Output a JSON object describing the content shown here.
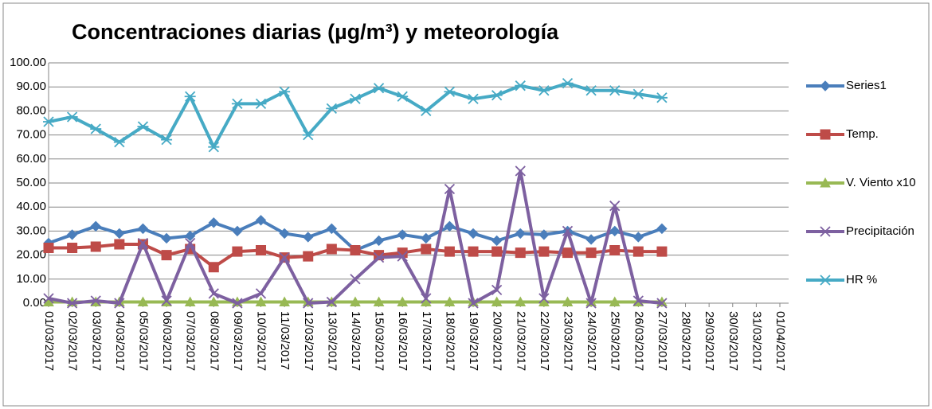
{
  "chart_data": {
    "type": "line",
    "title": "Concentraciones diarias (µg/m³) y meteorología",
    "categories": [
      "01/03/2017",
      "02/03/2017",
      "03/03/2017",
      "04/03/2017",
      "05/03/2017",
      "06/03/2017",
      "07/03/2017",
      "08/03/2017",
      "09/03/2017",
      "10/03/2017",
      "11/03/2017",
      "12/03/2017",
      "13/03/2017",
      "14/03/2017",
      "15/03/2017",
      "16/03/2017",
      "17/03/2017",
      "18/03/2017",
      "19/03/2017",
      "20/03/2017",
      "21/03/2017",
      "22/03/2017",
      "23/03/2017",
      "24/03/2017",
      "25/03/2017",
      "26/03/2017",
      "27/03/2017",
      "28/03/2017",
      "29/03/2017",
      "30/03/2017",
      "31/03/2017",
      "01/04/2017"
    ],
    "series": [
      {
        "name": "Series1",
        "color": "#4a7ebb",
        "marker": "diamond",
        "values": [
          25,
          28.5,
          32,
          29,
          31,
          27,
          28,
          33.5,
          30,
          34.5,
          29,
          27.5,
          31,
          22,
          26,
          28.5,
          27,
          32,
          29,
          26,
          29,
          28.5,
          30,
          26.5,
          30,
          27.5,
          31,
          null,
          null,
          null,
          null,
          null
        ]
      },
      {
        "name": "Temp.",
        "color": "#be4b48",
        "marker": "square",
        "values": [
          23,
          23,
          23.5,
          24.5,
          24.5,
          20,
          22.5,
          15,
          21.5,
          22,
          19,
          19.5,
          22.5,
          22,
          20,
          21,
          22.5,
          21.5,
          21.5,
          21.5,
          21,
          21.5,
          21,
          21,
          22,
          21.5,
          21.5,
          null,
          null,
          null,
          null,
          null
        ]
      },
      {
        "name": "V. Viento x10",
        "color": "#98b954",
        "marker": "triangle",
        "values": [
          0.5,
          0.5,
          0.5,
          0.5,
          0.5,
          0.5,
          0.5,
          0.5,
          0.5,
          0.5,
          0.5,
          0.5,
          0.5,
          0.5,
          0.5,
          0.5,
          0.5,
          0.5,
          0.5,
          0.5,
          0.5,
          0.5,
          0.5,
          0.5,
          0.5,
          0.5,
          0.5,
          null,
          null,
          null,
          null,
          null
        ]
      },
      {
        "name": "Precipitación",
        "color": "#7d60a0",
        "marker": "x",
        "values": [
          2,
          0,
          1,
          0,
          25,
          1,
          25,
          4,
          0,
          4,
          19,
          0,
          0.5,
          10,
          19,
          19.5,
          2,
          47.5,
          0,
          5.5,
          55,
          2,
          30,
          0,
          40.5,
          1,
          0,
          null,
          null,
          null,
          null,
          null
        ]
      },
      {
        "name": "HR %",
        "color": "#46aac5",
        "marker": "star",
        "values": [
          75.5,
          77.5,
          72.5,
          67,
          73.5,
          68,
          86,
          65,
          83,
          83,
          88,
          70,
          81,
          85,
          89.5,
          86,
          80,
          88,
          85,
          86.5,
          90.5,
          88.5,
          91.5,
          88.5,
          88.5,
          87,
          85.5,
          null,
          null,
          null,
          null,
          null
        ]
      }
    ],
    "ylim": [
      0,
      100
    ],
    "yticks": [
      {
        "value": 0,
        "label": "0.00"
      },
      {
        "value": 10,
        "label": "10.00"
      },
      {
        "value": 20,
        "label": "20.00"
      },
      {
        "value": 30,
        "label": "30.00"
      },
      {
        "value": 40,
        "label": "40.00"
      },
      {
        "value": 50,
        "label": "50.00"
      },
      {
        "value": 60,
        "label": "60.00"
      },
      {
        "value": 70,
        "label": "70.00"
      },
      {
        "value": 80,
        "label": "80.00"
      },
      {
        "value": 90,
        "label": "90.00"
      },
      {
        "value": 100,
        "label": "100.00"
      }
    ],
    "grid": true,
    "legend": "right"
  }
}
